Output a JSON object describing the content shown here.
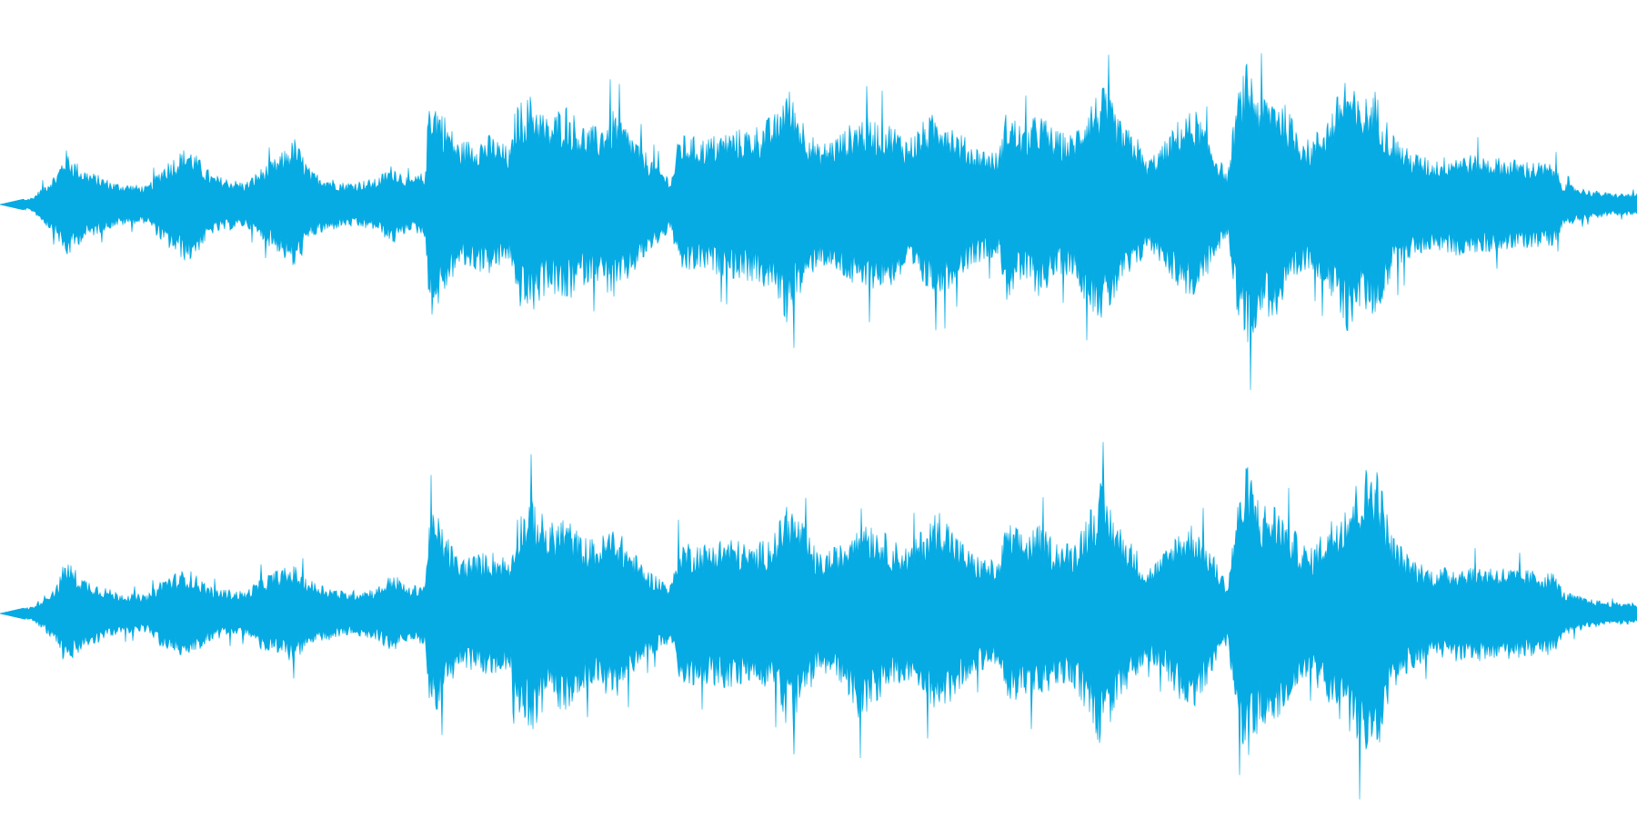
{
  "waveform": {
    "color": "#06ABE3",
    "background": "#FFFFFF",
    "channels": [
      {
        "name": "",
        "envelope": [
          [
            0.0,
            0.0
          ],
          [
            0.02,
            0.04
          ],
          [
            0.035,
            0.18
          ],
          [
            0.04,
            0.3
          ],
          [
            0.05,
            0.2
          ],
          [
            0.07,
            0.12
          ],
          [
            0.09,
            0.1
          ],
          [
            0.1,
            0.22
          ],
          [
            0.115,
            0.32
          ],
          [
            0.13,
            0.16
          ],
          [
            0.15,
            0.12
          ],
          [
            0.16,
            0.2
          ],
          [
            0.17,
            0.26
          ],
          [
            0.18,
            0.36
          ],
          [
            0.19,
            0.18
          ],
          [
            0.21,
            0.12
          ],
          [
            0.23,
            0.14
          ],
          [
            0.24,
            0.22
          ],
          [
            0.25,
            0.14
          ],
          [
            0.26,
            0.18
          ],
          [
            0.262,
            0.62
          ],
          [
            0.268,
            0.55
          ],
          [
            0.28,
            0.34
          ],
          [
            0.3,
            0.38
          ],
          [
            0.312,
            0.3
          ],
          [
            0.315,
            0.54
          ],
          [
            0.325,
            0.6
          ],
          [
            0.335,
            0.46
          ],
          [
            0.345,
            0.56
          ],
          [
            0.355,
            0.44
          ],
          [
            0.365,
            0.42
          ],
          [
            0.375,
            0.52
          ],
          [
            0.385,
            0.4
          ],
          [
            0.395,
            0.28
          ],
          [
            0.41,
            0.14
          ],
          [
            0.415,
            0.38
          ],
          [
            0.43,
            0.36
          ],
          [
            0.445,
            0.4
          ],
          [
            0.46,
            0.42
          ],
          [
            0.475,
            0.5
          ],
          [
            0.48,
            0.66
          ],
          [
            0.49,
            0.48
          ],
          [
            0.5,
            0.32
          ],
          [
            0.515,
            0.4
          ],
          [
            0.525,
            0.48
          ],
          [
            0.535,
            0.46
          ],
          [
            0.545,
            0.44
          ],
          [
            0.555,
            0.36
          ],
          [
            0.565,
            0.46
          ],
          [
            0.575,
            0.52
          ],
          [
            0.585,
            0.4
          ],
          [
            0.595,
            0.32
          ],
          [
            0.61,
            0.28
          ],
          [
            0.615,
            0.52
          ],
          [
            0.625,
            0.42
          ],
          [
            0.635,
            0.5
          ],
          [
            0.645,
            0.4
          ],
          [
            0.655,
            0.38
          ],
          [
            0.665,
            0.56
          ],
          [
            0.675,
            0.64
          ],
          [
            0.685,
            0.44
          ],
          [
            0.695,
            0.36
          ],
          [
            0.7,
            0.24
          ],
          [
            0.71,
            0.32
          ],
          [
            0.72,
            0.46
          ],
          [
            0.73,
            0.52
          ],
          [
            0.74,
            0.34
          ],
          [
            0.75,
            0.16
          ],
          [
            0.755,
            0.56
          ],
          [
            0.762,
            0.78
          ],
          [
            0.77,
            0.6
          ],
          [
            0.78,
            0.62
          ],
          [
            0.79,
            0.46
          ],
          [
            0.8,
            0.34
          ],
          [
            0.815,
            0.54
          ],
          [
            0.822,
            0.72
          ],
          [
            0.83,
            0.56
          ],
          [
            0.84,
            0.62
          ],
          [
            0.85,
            0.4
          ],
          [
            0.86,
            0.3
          ],
          [
            0.875,
            0.24
          ],
          [
            0.89,
            0.28
          ],
          [
            0.91,
            0.26
          ],
          [
            0.93,
            0.24
          ],
          [
            0.95,
            0.22
          ],
          [
            0.955,
            0.12
          ],
          [
            0.97,
            0.08
          ],
          [
            0.985,
            0.06
          ],
          [
            1.0,
            0.06
          ]
        ]
      },
      {
        "name": "",
        "envelope": [
          [
            0.0,
            0.0
          ],
          [
            0.02,
            0.04
          ],
          [
            0.035,
            0.16
          ],
          [
            0.04,
            0.3
          ],
          [
            0.05,
            0.2
          ],
          [
            0.07,
            0.12
          ],
          [
            0.09,
            0.1
          ],
          [
            0.1,
            0.2
          ],
          [
            0.115,
            0.24
          ],
          [
            0.13,
            0.14
          ],
          [
            0.15,
            0.12
          ],
          [
            0.16,
            0.2
          ],
          [
            0.17,
            0.24
          ],
          [
            0.18,
            0.26
          ],
          [
            0.19,
            0.18
          ],
          [
            0.21,
            0.12
          ],
          [
            0.23,
            0.14
          ],
          [
            0.24,
            0.22
          ],
          [
            0.25,
            0.14
          ],
          [
            0.26,
            0.18
          ],
          [
            0.262,
            0.56
          ],
          [
            0.268,
            0.52
          ],
          [
            0.28,
            0.3
          ],
          [
            0.3,
            0.34
          ],
          [
            0.312,
            0.3
          ],
          [
            0.315,
            0.52
          ],
          [
            0.325,
            0.64
          ],
          [
            0.335,
            0.48
          ],
          [
            0.345,
            0.54
          ],
          [
            0.355,
            0.42
          ],
          [
            0.365,
            0.4
          ],
          [
            0.375,
            0.48
          ],
          [
            0.385,
            0.36
          ],
          [
            0.395,
            0.24
          ],
          [
            0.41,
            0.16
          ],
          [
            0.415,
            0.4
          ],
          [
            0.43,
            0.38
          ],
          [
            0.445,
            0.42
          ],
          [
            0.46,
            0.36
          ],
          [
            0.475,
            0.46
          ],
          [
            0.48,
            0.62
          ],
          [
            0.49,
            0.5
          ],
          [
            0.5,
            0.32
          ],
          [
            0.515,
            0.38
          ],
          [
            0.525,
            0.58
          ],
          [
            0.535,
            0.48
          ],
          [
            0.545,
            0.4
          ],
          [
            0.555,
            0.36
          ],
          [
            0.565,
            0.48
          ],
          [
            0.575,
            0.58
          ],
          [
            0.585,
            0.42
          ],
          [
            0.595,
            0.32
          ],
          [
            0.61,
            0.28
          ],
          [
            0.615,
            0.5
          ],
          [
            0.625,
            0.44
          ],
          [
            0.635,
            0.48
          ],
          [
            0.645,
            0.4
          ],
          [
            0.655,
            0.38
          ],
          [
            0.665,
            0.56
          ],
          [
            0.672,
            0.72
          ],
          [
            0.685,
            0.46
          ],
          [
            0.695,
            0.34
          ],
          [
            0.7,
            0.24
          ],
          [
            0.71,
            0.32
          ],
          [
            0.72,
            0.46
          ],
          [
            0.73,
            0.5
          ],
          [
            0.74,
            0.34
          ],
          [
            0.75,
            0.16
          ],
          [
            0.755,
            0.56
          ],
          [
            0.762,
            0.82
          ],
          [
            0.77,
            0.6
          ],
          [
            0.78,
            0.6
          ],
          [
            0.79,
            0.46
          ],
          [
            0.8,
            0.34
          ],
          [
            0.815,
            0.54
          ],
          [
            0.84,
            0.86
          ],
          [
            0.85,
            0.44
          ],
          [
            0.86,
            0.32
          ],
          [
            0.875,
            0.24
          ],
          [
            0.89,
            0.26
          ],
          [
            0.91,
            0.26
          ],
          [
            0.93,
            0.24
          ],
          [
            0.95,
            0.22
          ],
          [
            0.955,
            0.12
          ],
          [
            0.97,
            0.08
          ],
          [
            0.985,
            0.06
          ],
          [
            1.0,
            0.06
          ]
        ]
      }
    ]
  }
}
